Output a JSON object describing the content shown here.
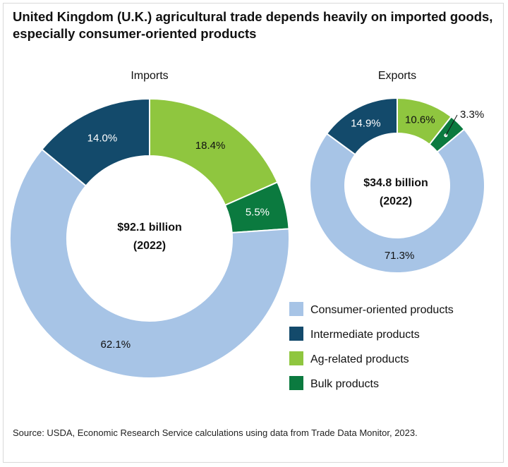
{
  "title": "United Kingdom (U.K.) agricultural trade depends heavily on imported goods, especially consumer-oriented products",
  "source": "Source: USDA, Economic Research Service calculations using data from Trade Data Monitor, 2023.",
  "colors": {
    "consumer": "#a7c4e6",
    "intermediate": "#134a6b",
    "ag": "#8fc63f",
    "bulk": "#0b7a3f"
  },
  "legend": [
    {
      "key": "consumer",
      "label": "Consumer-oriented products"
    },
    {
      "key": "intermediate",
      "label": "Intermediate products"
    },
    {
      "key": "ag",
      "label": "Ag-related products"
    },
    {
      "key": "bulk",
      "label": "Bulk products"
    }
  ],
  "chart_data": [
    {
      "type": "pie",
      "title": "Imports",
      "center_label": [
        "$92.1 billion",
        "(2022)"
      ],
      "slices": [
        {
          "key": "ag",
          "label": "Ag-related products",
          "value": 18.4,
          "text": "18.4%"
        },
        {
          "key": "bulk",
          "label": "Bulk products",
          "value": 5.5,
          "text": "5.5%"
        },
        {
          "key": "consumer",
          "label": "Consumer-oriented products",
          "value": 62.1,
          "text": "62.1%"
        },
        {
          "key": "intermediate",
          "label": "Intermediate products",
          "value": 14.0,
          "text": "14.0%"
        }
      ]
    },
    {
      "type": "pie",
      "title": "Exports",
      "center_label": [
        "$34.8 billion",
        "(2022)"
      ],
      "slices": [
        {
          "key": "ag",
          "label": "Ag-related products",
          "value": 10.6,
          "text": "10.6%"
        },
        {
          "key": "bulk",
          "label": "Bulk products",
          "value": 3.3,
          "text": "3.3%"
        },
        {
          "key": "consumer",
          "label": "Consumer-oriented products",
          "value": 71.3,
          "text": "71.3%"
        },
        {
          "key": "intermediate",
          "label": "Intermediate products",
          "value": 14.9,
          "text": "14.9%"
        }
      ]
    }
  ]
}
